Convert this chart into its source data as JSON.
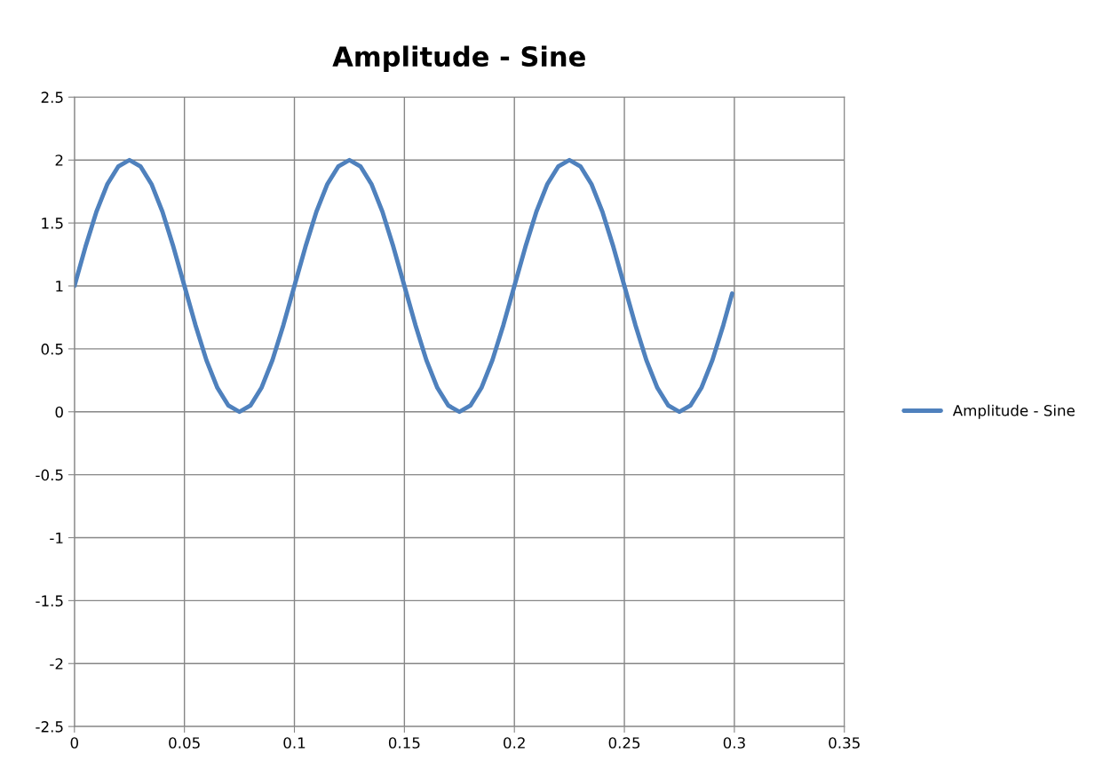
{
  "chart_data": {
    "type": "line",
    "title": "Amplitude - Sine",
    "x": [
      0,
      0.005,
      0.01,
      0.015,
      0.02,
      0.025,
      0.03,
      0.035,
      0.04,
      0.045,
      0.05,
      0.055,
      0.06,
      0.065,
      0.07,
      0.075,
      0.08,
      0.085,
      0.09,
      0.095,
      0.1,
      0.105,
      0.11,
      0.115,
      0.12,
      0.125,
      0.13,
      0.135,
      0.14,
      0.145,
      0.15,
      0.155,
      0.16,
      0.165,
      0.17,
      0.175,
      0.18,
      0.185,
      0.19,
      0.195,
      0.2,
      0.205,
      0.21,
      0.215,
      0.22,
      0.225,
      0.23,
      0.235,
      0.24,
      0.245,
      0.25,
      0.255,
      0.26,
      0.265,
      0.27,
      0.275,
      0.28,
      0.285,
      0.29,
      0.295,
      0.299
    ],
    "series": [
      {
        "name": "Amplitude - Sine",
        "color": "#4f81bd",
        "values": [
          1,
          1.31,
          1.59,
          1.81,
          1.95,
          2,
          1.95,
          1.81,
          1.59,
          1.31,
          1,
          0.69,
          0.41,
          0.19,
          0.05,
          0,
          0.05,
          0.19,
          0.41,
          0.69,
          1,
          1.31,
          1.59,
          1.81,
          1.95,
          2,
          1.95,
          1.81,
          1.59,
          1.31,
          1,
          0.69,
          0.41,
          0.19,
          0.05,
          0,
          0.05,
          0.19,
          0.41,
          0.69,
          1,
          1.31,
          1.59,
          1.81,
          1.95,
          2,
          1.95,
          1.81,
          1.59,
          1.31,
          1,
          0.69,
          0.41,
          0.19,
          0.05,
          0,
          0.05,
          0.19,
          0.41,
          0.69,
          0.94
        ]
      }
    ],
    "xlim": [
      0,
      0.35
    ],
    "xticks": [
      0,
      0.05,
      0.1,
      0.15,
      0.2,
      0.25,
      0.3,
      0.35
    ],
    "ylim": [
      -2.5,
      2.5
    ],
    "yticks": [
      -2.5,
      -2,
      -1.5,
      -1,
      -0.5,
      0,
      0.5,
      1,
      1.5,
      2,
      2.5
    ],
    "grid": true,
    "legend": "right",
    "marker": "none",
    "line_style": "solid"
  }
}
